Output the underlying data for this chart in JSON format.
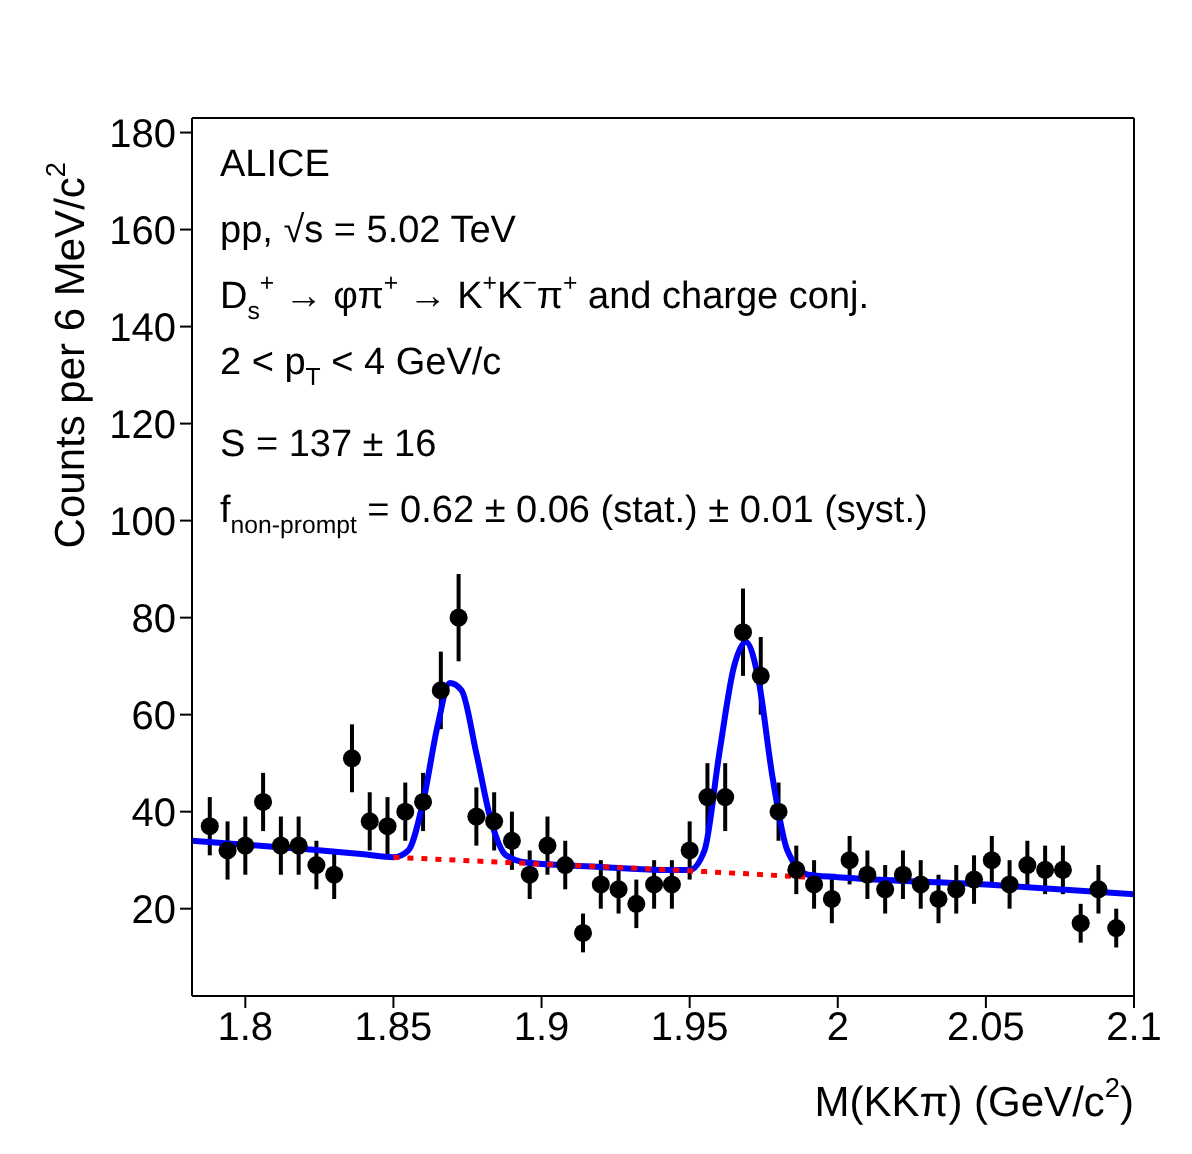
{
  "chart_data": {
    "type": "scatter",
    "xlabel": "M(KKπ) (GeV/c$^{2}$)",
    "ylabel": "Counts per 6 MeV/c$^{2}$",
    "annotations": [
      "ALICE",
      "pp, √s = 5.02 TeV",
      "D$_{s}$$^{+}$ → φπ$^{+}$ → K$^{+}$K$^{−}$π$^{+}$ and charge conj.",
      "2 < p$_{T}$ < 4 GeV/c",
      "S = 137 ± 16",
      "f$_{non-prompt}$ = 0.62 ± 0.06 (stat.) ± 0.01 (syst.)"
    ],
    "xlim": [
      1.782,
      2.1
    ],
    "xticks": [
      1.8,
      1.85,
      1.9,
      1.95,
      2,
      2.05,
      2.1
    ],
    "ylim": [
      2,
      183
    ],
    "yticks": [
      20,
      40,
      60,
      80,
      100,
      120,
      140,
      160,
      180
    ],
    "series": [
      {
        "color": "#000000",
        "marker": "circle",
        "x": [
          1.788,
          1.794,
          1.8,
          1.806,
          1.812,
          1.818,
          1.824,
          1.83,
          1.836,
          1.842,
          1.848,
          1.854,
          1.86,
          1.866,
          1.872,
          1.878,
          1.884,
          1.89,
          1.896,
          1.902,
          1.908,
          1.914,
          1.92,
          1.926,
          1.932,
          1.938,
          1.944,
          1.95,
          1.956,
          1.962,
          1.968,
          1.974,
          1.98,
          1.986,
          1.992,
          1.998,
          2.004,
          2.01,
          2.016,
          2.022,
          2.028,
          2.034,
          2.04,
          2.046,
          2.052,
          2.058,
          2.064,
          2.07,
          2.076,
          2.082,
          2.088,
          2.094
        ],
        "values": [
          37,
          32,
          33,
          42,
          33,
          33,
          29,
          27,
          51,
          38,
          37,
          40,
          42,
          65,
          80,
          39,
          38,
          34,
          27,
          33,
          29,
          15,
          25,
          24,
          21,
          25,
          25,
          32,
          43,
          43,
          77,
          68,
          40,
          28,
          25,
          22,
          30,
          27,
          24,
          27,
          25,
          22,
          24,
          26,
          30,
          25,
          29,
          28,
          28,
          17,
          24,
          16
        ],
        "errors": [
          6,
          6,
          6,
          6,
          6,
          6,
          5,
          5,
          7,
          6,
          6,
          6,
          6,
          8,
          9,
          6,
          6,
          6,
          5,
          6,
          5,
          4,
          5,
          5,
          5,
          5,
          5,
          6,
          7,
          7,
          9,
          8,
          6,
          5,
          5,
          5,
          5,
          5,
          5,
          5,
          5,
          5,
          5,
          5,
          5,
          5,
          5,
          5,
          5,
          4,
          5,
          4
        ]
      },
      {
        "type": "line",
        "color": "#0000ff",
        "marker": "none",
        "line_style": "solid",
        "x": [
          1.782,
          1.8,
          1.82,
          1.84,
          1.85,
          1.855,
          1.86,
          1.865,
          1.869,
          1.873,
          1.878,
          1.883,
          1.888,
          1.895,
          1.92,
          1.94,
          1.95,
          1.955,
          1.96,
          1.965,
          1.969,
          1.973,
          1.978,
          1.983,
          1.99,
          2.0,
          2.05,
          2.1
        ],
        "values": [
          34,
          33.2,
          32.3,
          31.2,
          30.6,
          32,
          42,
          58,
          66.5,
          65,
          52,
          38,
          31,
          29.5,
          28.6,
          28,
          28,
          32,
          52,
          70,
          75,
          68,
          47,
          32,
          27,
          26.5,
          25,
          23
        ]
      },
      {
        "type": "line",
        "color": "#ff0000",
        "marker": "none",
        "line_style": "dotted",
        "x": [
          1.85,
          1.9,
          1.95,
          1.99
        ],
        "values": [
          30.6,
          29.2,
          27.8,
          26.5
        ]
      }
    ]
  }
}
